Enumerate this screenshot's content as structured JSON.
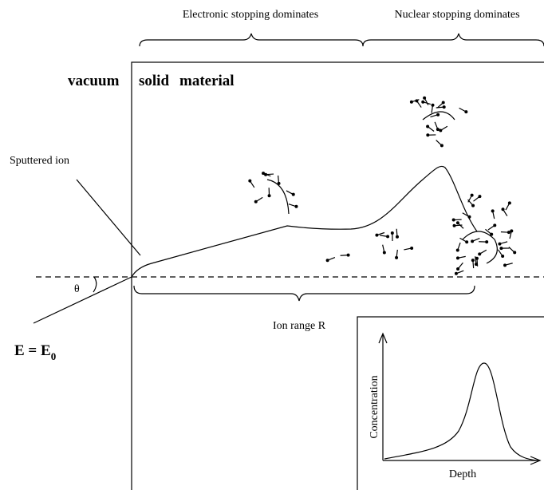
{
  "header": {
    "electronic": "Electronic stopping dominates",
    "nuclear": "Nuclear stopping dominates"
  },
  "regions": {
    "vacuum": "vacuum",
    "solid": "solid",
    "material": "material"
  },
  "labels": {
    "sputtered": "Sputtered ion",
    "angle": "θ",
    "energy": {
      "text": "E = E",
      "subscript": "0"
    },
    "range": "Ion range R"
  },
  "inset": {
    "y_axis": "Concentration",
    "x_axis": "Depth"
  }
}
